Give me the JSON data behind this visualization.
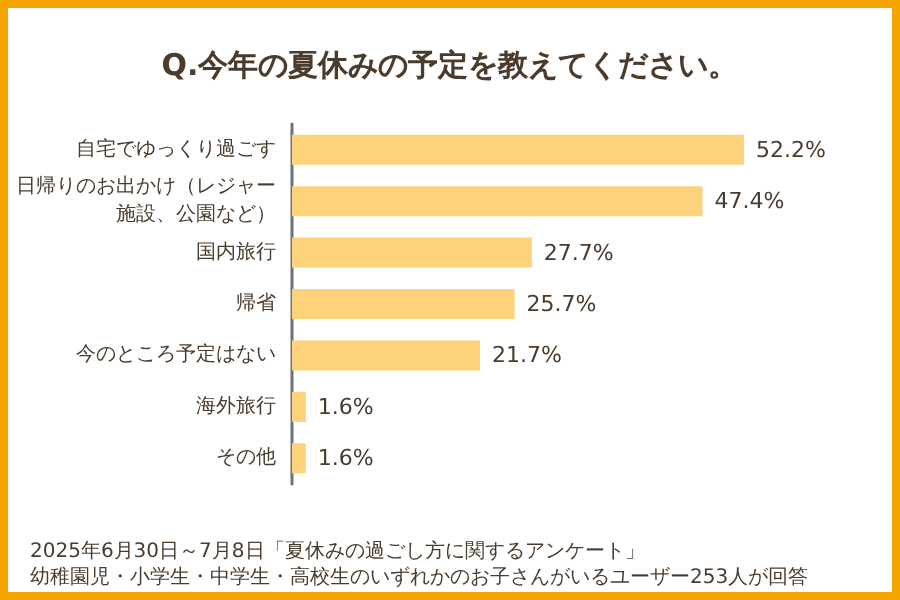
{
  "chart_data": {
    "type": "bar",
    "orientation": "horizontal",
    "title": "Q.今年の夏休みの予定を教えてください。",
    "categories": [
      "自宅でゆっくり過ごす",
      "日帰りのお出かけ（レジャー施設、公園など）",
      "国内旅行",
      "帰省",
      "今のところ予定はない",
      "海外旅行",
      "その他"
    ],
    "values": [
      52.2,
      47.4,
      27.7,
      25.7,
      21.7,
      1.6,
      1.6
    ],
    "value_labels": [
      "52.2%",
      "47.4%",
      "27.7%",
      "25.7%",
      "21.7%",
      "1.6%",
      "1.6%"
    ],
    "color": "#fcd27a",
    "annotations": [
      "2025年6月30日～7月8日「夏休みの過ごし方に関するアンケート」",
      "幼稚園児・小学生・中学生・高校生のいずれかのお子さんがいるユーザー253人が回答"
    ]
  }
}
